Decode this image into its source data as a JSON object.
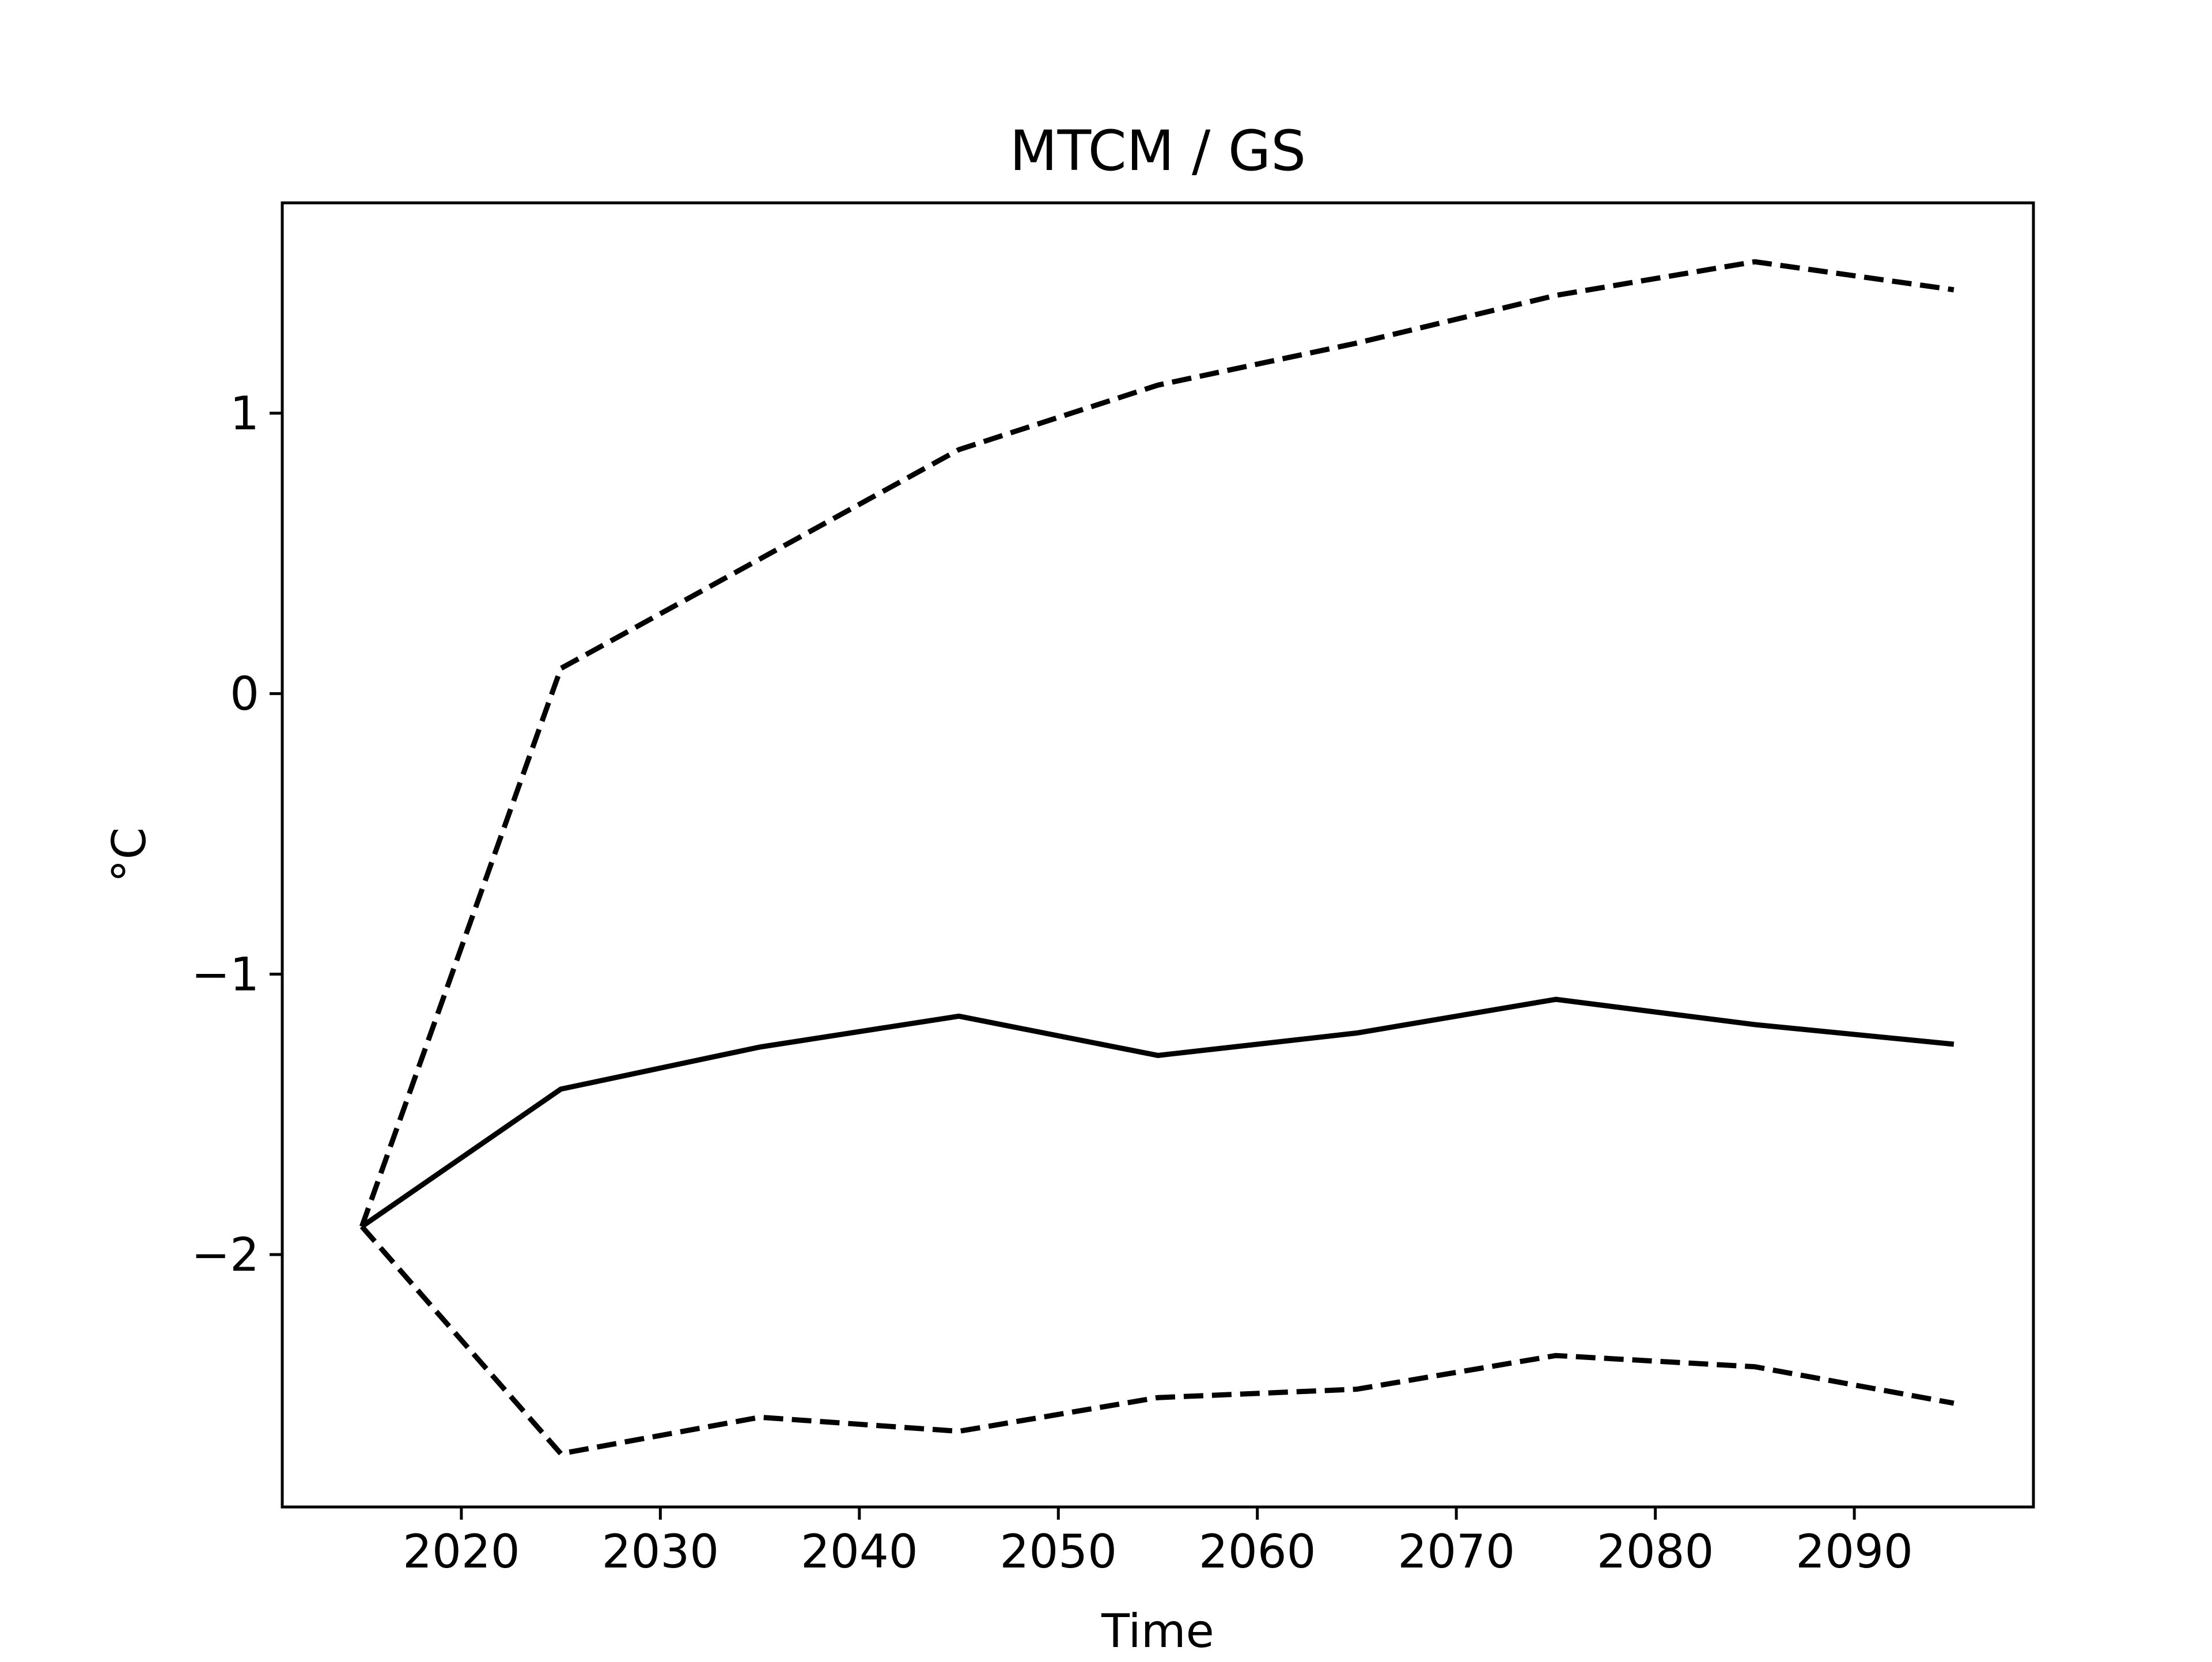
{
  "chart_data": {
    "type": "line",
    "title": "MTCM / GS",
    "xlabel": "Time",
    "ylabel": "°C",
    "x": [
      2015,
      2025,
      2035,
      2045,
      2055,
      2065,
      2075,
      2085,
      2095
    ],
    "xlim": [
      2011,
      2099
    ],
    "ylim": [
      -2.9,
      1.75
    ],
    "xticks": [
      2020,
      2030,
      2040,
      2050,
      2060,
      2070,
      2080,
      2090
    ],
    "xtick_labels": [
      "2020",
      "2030",
      "2040",
      "2050",
      "2060",
      "2070",
      "2080",
      "2090"
    ],
    "yticks": [
      1,
      0,
      -1,
      -2
    ],
    "ytick_labels": [
      "1",
      "0",
      "−1",
      "−2"
    ],
    "grid": false,
    "series": [
      {
        "values": [
          -1.9,
          -1.41,
          -1.26,
          -1.15,
          -1.29,
          -1.21,
          -1.09,
          -1.18,
          -1.25
        ],
        "style": "solid",
        "color": "#000000"
      },
      {
        "values": [
          -1.9,
          0.09,
          0.48,
          0.87,
          1.1,
          1.25,
          1.42,
          1.54,
          1.44
        ],
        "style": "dashed",
        "color": "#000000"
      },
      {
        "values": [
          -1.9,
          -2.71,
          -2.58,
          -2.63,
          -2.51,
          -2.48,
          -2.36,
          -2.4,
          -2.53
        ],
        "style": "dashed",
        "color": "#000000"
      }
    ]
  }
}
